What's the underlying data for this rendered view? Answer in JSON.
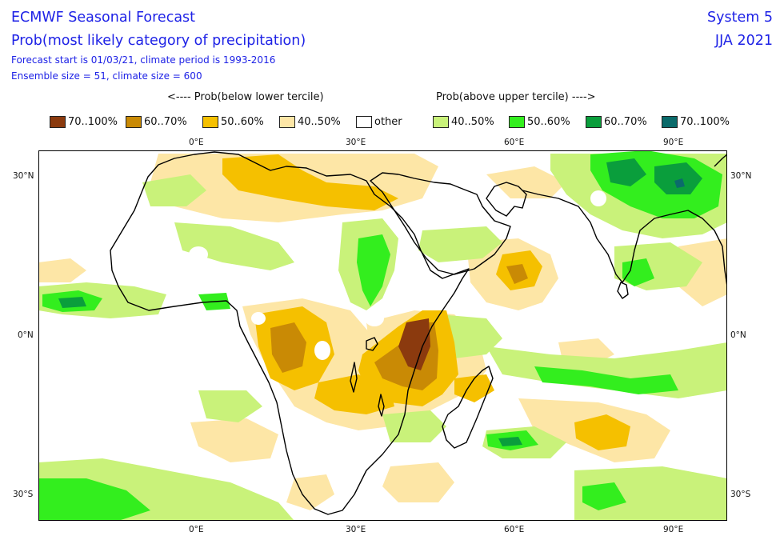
{
  "header": {
    "title_line1": "ECMWF Seasonal Forecast",
    "title_line2": "Prob(most likely category of precipitation)",
    "info_line1": "Forecast start is 01/03/21, climate period is 1993-2016",
    "info_line2": "Ensemble size = 51, climate size = 600",
    "system": "System 5",
    "season": "JJA 2021"
  },
  "legend": {
    "below_heading": "<---- Prob(below lower tercile)",
    "above_heading": "Prob(above upper tercile) ---->",
    "items": [
      {
        "label": "70..100%",
        "color": "#8b3a0e"
      },
      {
        "label": "60..70%",
        "color": "#c98a05"
      },
      {
        "label": "50..60%",
        "color": "#f5c000"
      },
      {
        "label": "40..50%",
        "color": "#fde6a6"
      },
      {
        "label": "other",
        "color": "#ffffff"
      },
      {
        "label": "40..50%",
        "color": "#c9f27a"
      },
      {
        "label": "50..60%",
        "color": "#33ee1e"
      },
      {
        "label": "60..70%",
        "color": "#0a9e3c"
      },
      {
        "label": "70..100%",
        "color": "#0b6b6b"
      }
    ]
  },
  "axes": {
    "lon_labels": [
      "0°E",
      "30°E",
      "60°E",
      "90°E"
    ],
    "lat_labels": [
      "30°N",
      "0°N",
      "30°S"
    ]
  }
}
